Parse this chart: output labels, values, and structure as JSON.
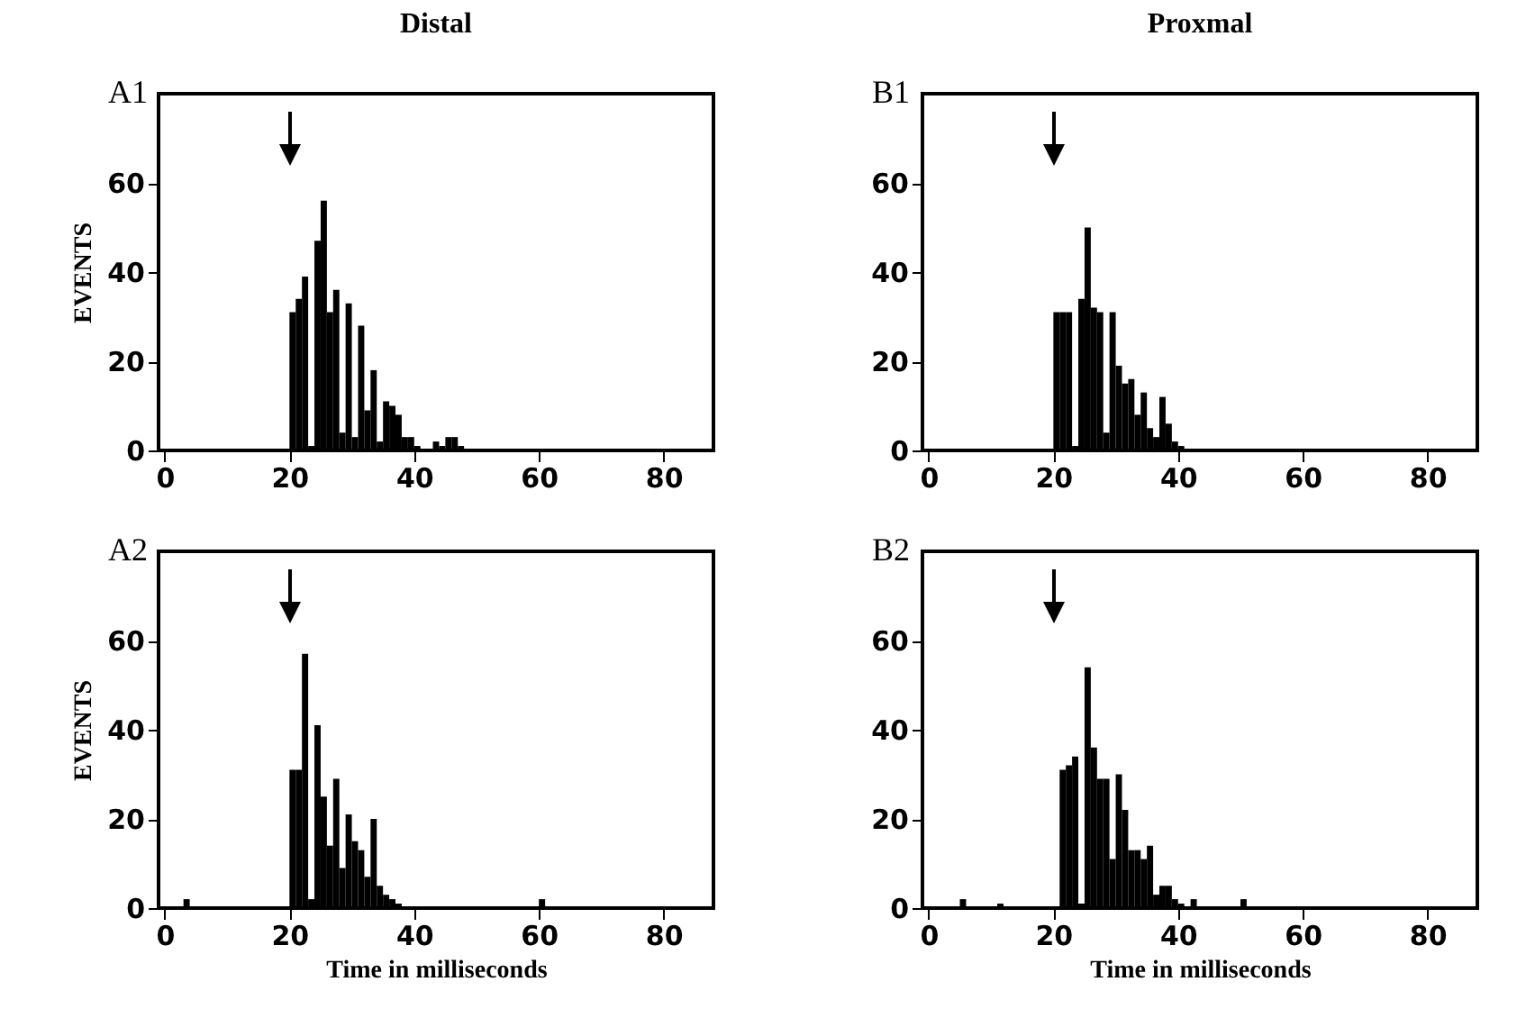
{
  "chart_data": [
    {
      "type": "histogram",
      "title": "Distal",
      "ylabel": "EVENTS",
      "annotations": [
        "A1"
      ],
      "color": "#000000",
      "bins": [
        20,
        21,
        22,
        23,
        24,
        25,
        26,
        27,
        28,
        29,
        30,
        31,
        32,
        33,
        34,
        35,
        36,
        37,
        38,
        39,
        40,
        41,
        42,
        43,
        44,
        45,
        46,
        47,
        48
      ],
      "values": [
        31,
        34,
        39,
        1,
        47,
        56,
        31,
        36,
        4,
        33,
        3,
        28,
        9,
        18,
        2,
        11,
        10,
        8,
        3,
        3,
        1,
        0,
        0,
        2,
        1,
        3,
        3,
        1
      ],
      "xlim": [
        -1,
        88
      ],
      "xticks": [
        0,
        20,
        40,
        60,
        80
      ],
      "ylim": [
        0,
        80
      ],
      "yticks": [
        0,
        20,
        40,
        60
      ],
      "grid": false,
      "ref_lines": [
        {
          "axis": "x",
          "value": 20
        }
      ]
    },
    {
      "type": "histogram",
      "title": "Proxmal",
      "annotations": [
        "B1"
      ],
      "color": "#000000",
      "bins": [
        20,
        21,
        22,
        23,
        24,
        25,
        26,
        27,
        28,
        29,
        30,
        31,
        32,
        33,
        34,
        35,
        36,
        37,
        38,
        39,
        40,
        41
      ],
      "values": [
        31,
        31,
        31,
        1,
        34,
        50,
        32,
        31,
        4,
        31,
        19,
        15,
        16,
        8,
        13,
        5,
        3,
        12,
        6,
        2,
        1
      ],
      "xlim": [
        -1,
        88
      ],
      "xticks": [
        0,
        20,
        40,
        60,
        80
      ],
      "ylim": [
        0,
        80
      ],
      "yticks": [
        0,
        20,
        40,
        60
      ],
      "grid": false,
      "ref_lines": [
        {
          "axis": "x",
          "value": 20
        }
      ]
    },
    {
      "type": "histogram",
      "xlabel": "Time in milliseconds",
      "ylabel": "EVENTS",
      "annotations": [
        "A2"
      ],
      "color": "#000000",
      "bins": [
        3,
        4,
        5,
        6,
        7,
        8,
        9,
        10,
        11,
        12,
        13,
        14,
        15,
        16,
        17,
        18,
        19,
        20,
        21,
        22,
        23,
        24,
        25,
        26,
        27,
        28,
        29,
        30,
        31,
        32,
        33,
        34,
        35,
        36,
        37,
        38,
        39,
        40,
        41,
        42,
        43,
        44,
        45,
        46,
        47,
        48,
        49,
        50,
        51,
        52,
        53,
        54,
        55,
        56,
        57,
        58,
        59,
        60,
        61
      ],
      "values": [
        2,
        0,
        0,
        0,
        0,
        0,
        0,
        0,
        0,
        0,
        0,
        0,
        0,
        0,
        0,
        0,
        0,
        31,
        31,
        57,
        2,
        41,
        25,
        14,
        29,
        9,
        21,
        15,
        13,
        7,
        20,
        5,
        3,
        2,
        1,
        0,
        0,
        0,
        0,
        0,
        0,
        0,
        0,
        0,
        0,
        0,
        0,
        0,
        0,
        0,
        0,
        0,
        0,
        0,
        0,
        0,
        0,
        2
      ],
      "xlim": [
        -1,
        88
      ],
      "xticks": [
        0,
        20,
        40,
        60,
        80
      ],
      "ylim": [
        0,
        80
      ],
      "yticks": [
        0,
        20,
        40,
        60
      ],
      "grid": false,
      "ref_lines": [
        {
          "axis": "x",
          "value": 20
        }
      ]
    },
    {
      "type": "histogram",
      "xlabel": "Time in milliseconds",
      "annotations": [
        "B2"
      ],
      "color": "#000000",
      "bins": [
        5,
        6,
        7,
        8,
        9,
        10,
        11,
        12,
        13,
        14,
        15,
        16,
        17,
        18,
        19,
        20,
        21,
        22,
        23,
        24,
        25,
        26,
        27,
        28,
        29,
        30,
        31,
        32,
        33,
        34,
        35,
        36,
        37,
        38,
        39,
        40,
        41,
        42,
        43,
        44,
        45,
        46,
        47,
        48,
        49,
        50,
        51
      ],
      "values": [
        2,
        0,
        0,
        0,
        0,
        0,
        1,
        0,
        0,
        0,
        0,
        0,
        0,
        0,
        0,
        0,
        31,
        32,
        34,
        1,
        54,
        36,
        29,
        29,
        11,
        30,
        22,
        13,
        13,
        11,
        14,
        3,
        5,
        5,
        2,
        1,
        0,
        2,
        0,
        0,
        0,
        0,
        0,
        0,
        0,
        2
      ],
      "xlim": [
        -1,
        88
      ],
      "xticks": [
        0,
        20,
        40,
        60,
        80
      ],
      "ylim": [
        0,
        80
      ],
      "yticks": [
        0,
        20,
        40,
        60
      ],
      "grid": false,
      "ref_lines": [
        {
          "axis": "x",
          "value": 20
        }
      ]
    }
  ]
}
